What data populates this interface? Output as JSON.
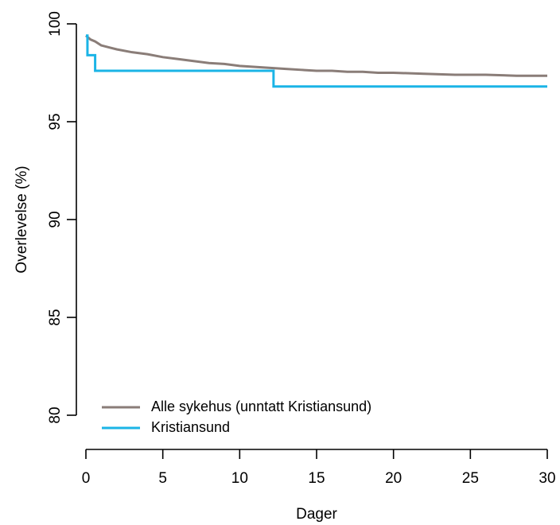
{
  "chart_data": {
    "type": "line",
    "title": "",
    "xlabel": "Dager",
    "ylabel": "Overlevelse (%)",
    "xlim": [
      0,
      30
    ],
    "ylim": [
      80,
      100
    ],
    "xticks": [
      0,
      5,
      10,
      15,
      20,
      25,
      30
    ],
    "yticks": [
      80,
      85,
      90,
      95,
      100
    ],
    "grid": false,
    "legend_position": "bottom-left",
    "series": [
      {
        "name": "Alle sykehus (unntatt Kristiansund)",
        "color": "#8a7d78",
        "step": false,
        "points": [
          [
            0,
            99.4
          ],
          [
            0.3,
            99.2
          ],
          [
            0.6,
            99.1
          ],
          [
            1.0,
            98.9
          ],
          [
            1.5,
            98.8
          ],
          [
            2.0,
            98.7
          ],
          [
            3.0,
            98.55
          ],
          [
            4.0,
            98.45
          ],
          [
            5.0,
            98.3
          ],
          [
            6.0,
            98.2
          ],
          [
            7.0,
            98.1
          ],
          [
            8.0,
            98.0
          ],
          [
            9.0,
            97.95
          ],
          [
            10.0,
            97.85
          ],
          [
            11.0,
            97.8
          ],
          [
            12.0,
            97.75
          ],
          [
            13.0,
            97.7
          ],
          [
            14.0,
            97.65
          ],
          [
            15.0,
            97.6
          ],
          [
            16.0,
            97.6
          ],
          [
            17.0,
            97.55
          ],
          [
            18.0,
            97.55
          ],
          [
            19.0,
            97.5
          ],
          [
            20.0,
            97.5
          ],
          [
            22.0,
            97.45
          ],
          [
            24.0,
            97.4
          ],
          [
            26.0,
            97.4
          ],
          [
            28.0,
            97.35
          ],
          [
            30.0,
            97.35
          ]
        ]
      },
      {
        "name": "Kristiansund",
        "color": "#1bb4e6",
        "step": true,
        "points": [
          [
            0,
            99.4
          ],
          [
            0.1,
            98.4
          ],
          [
            0.6,
            97.6
          ],
          [
            12.2,
            96.8
          ],
          [
            30.0,
            96.8
          ]
        ]
      }
    ]
  }
}
